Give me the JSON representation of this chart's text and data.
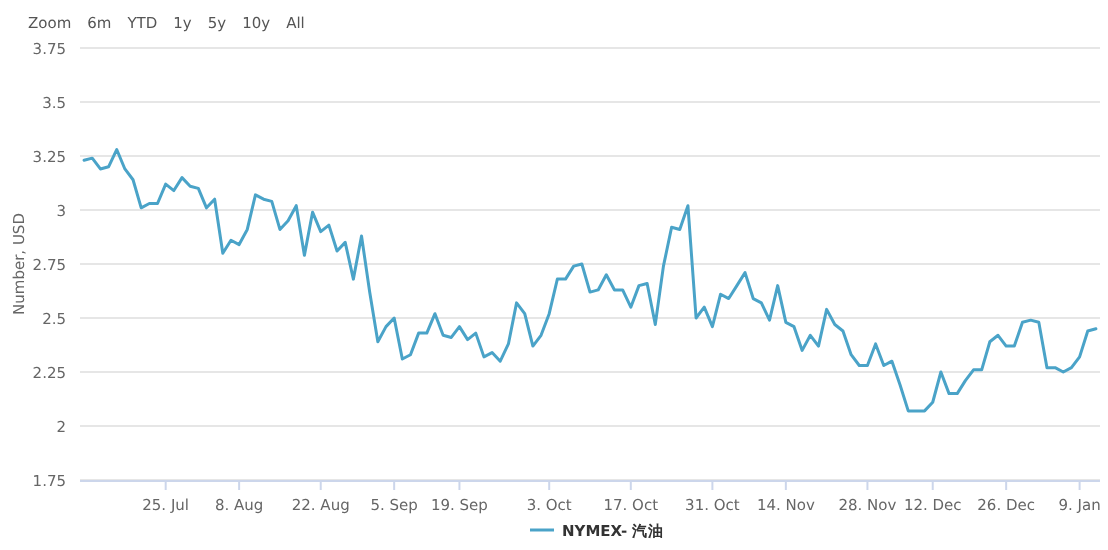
{
  "chart_data": {
    "type": "line",
    "ylabel": "Number, USD",
    "annotations": [
      "Zoom",
      "6m",
      "YTD",
      "1y",
      "5y",
      "10y",
      "All"
    ],
    "categories": [
      null,
      null,
      null,
      null,
      null,
      null,
      null,
      null,
      null,
      null,
      "25. Jul",
      null,
      null,
      null,
      null,
      null,
      null,
      null,
      null,
      "8. Aug",
      null,
      null,
      null,
      null,
      null,
      null,
      null,
      null,
      null,
      "22. Aug",
      null,
      null,
      null,
      null,
      null,
      null,
      null,
      null,
      "5. Sep",
      null,
      null,
      null,
      null,
      null,
      null,
      null,
      "19. Sep",
      null,
      null,
      null,
      null,
      null,
      null,
      null,
      null,
      null,
      null,
      "3. Oct",
      null,
      null,
      null,
      null,
      null,
      null,
      null,
      null,
      null,
      "17. Oct",
      null,
      null,
      null,
      null,
      null,
      null,
      null,
      null,
      null,
      "31. Oct",
      null,
      null,
      null,
      null,
      null,
      null,
      null,
      null,
      "14. Nov",
      null,
      null,
      null,
      null,
      null,
      null,
      null,
      null,
      null,
      "28. Nov",
      null,
      null,
      null,
      null,
      null,
      null,
      null,
      "12. Dec",
      null,
      null,
      null,
      null,
      null,
      null,
      null,
      null,
      "26. Dec",
      null,
      null,
      null,
      null,
      null,
      null,
      null,
      null,
      "9. Jan",
      null,
      null
    ],
    "series": [
      {
        "name": "NYMEX- 汽油",
        "color": "#4aa3c8",
        "values": [
          3.23,
          3.24,
          3.19,
          3.2,
          3.28,
          3.19,
          3.14,
          3.01,
          3.03,
          3.03,
          3.12,
          3.09,
          3.15,
          3.11,
          3.1,
          3.01,
          3.05,
          2.8,
          2.86,
          2.84,
          2.91,
          3.07,
          3.05,
          3.04,
          2.91,
          2.95,
          3.02,
          2.79,
          2.99,
          2.9,
          2.93,
          2.81,
          2.85,
          2.68,
          2.88,
          2.62,
          2.39,
          2.46,
          2.5,
          2.31,
          2.33,
          2.43,
          2.43,
          2.52,
          2.42,
          2.41,
          2.46,
          2.4,
          2.43,
          2.32,
          2.34,
          2.3,
          2.38,
          2.57,
          2.52,
          2.37,
          2.42,
          2.52,
          2.68,
          2.68,
          2.74,
          2.75,
          2.62,
          2.63,
          2.7,
          2.63,
          2.63,
          2.55,
          2.65,
          2.66,
          2.47,
          2.74,
          2.92,
          2.91,
          3.02,
          2.5,
          2.55,
          2.46,
          2.61,
          2.59,
          2.65,
          2.71,
          2.59,
          2.57,
          2.49,
          2.65,
          2.48,
          2.46,
          2.35,
          2.42,
          2.37,
          2.54,
          2.47,
          2.44,
          2.33,
          2.28,
          2.28,
          2.38,
          2.28,
          2.3,
          2.19,
          2.07,
          2.07,
          2.07,
          2.11,
          2.25,
          2.15,
          2.15,
          2.21,
          2.26,
          2.26,
          2.39,
          2.42,
          2.37,
          2.37,
          2.48,
          2.49,
          2.48,
          2.27,
          2.27,
          2.25,
          2.27,
          2.32,
          2.44,
          2.45
        ]
      }
    ],
    "ylim": [
      1.75,
      3.75
    ],
    "yticks": [
      1.75,
      2,
      2.25,
      2.5,
      2.75,
      3,
      3.25,
      3.5,
      3.75
    ],
    "grid": "y",
    "legend": "bottom",
    "marker": "none",
    "line_style": "solid"
  }
}
